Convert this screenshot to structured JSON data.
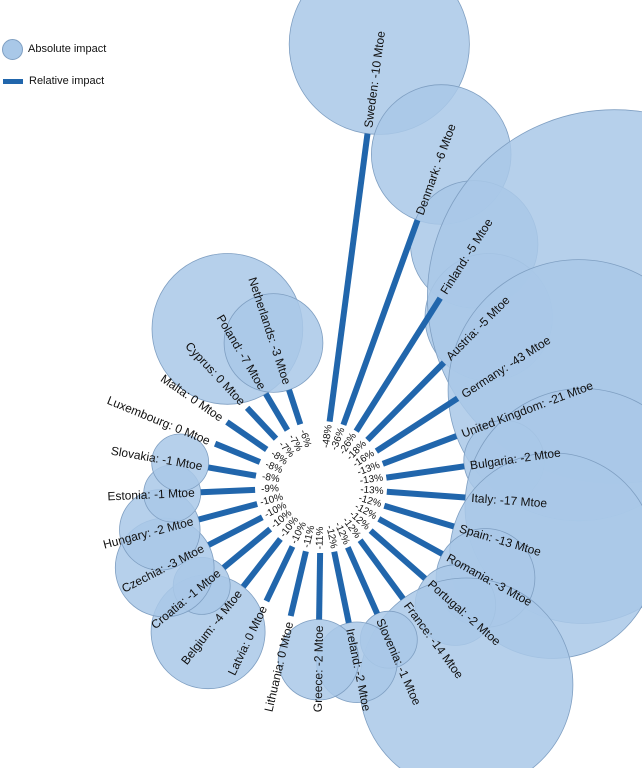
{
  "legend": {
    "absolute_label": "Absolute impact",
    "relative_label": "Relative impact"
  },
  "colors": {
    "bubble_fill": "#a9c8e8",
    "bubble_stroke": "#7f9fc2",
    "bar": "#2166ac"
  },
  "chart_data": {
    "type": "radial-bar-bubble",
    "title": "",
    "units": {
      "absolute": "Mtoe",
      "relative": "%"
    },
    "series": [
      {
        "name": "Absolute impact",
        "type": "bubble"
      },
      {
        "name": "Relative impact",
        "type": "radial-bar"
      }
    ],
    "countries": [
      {
        "name": "Sweden",
        "absolute": -10,
        "relative": -48
      },
      {
        "name": "Denmark",
        "absolute": -6,
        "relative": -36
      },
      {
        "name": "Finland",
        "absolute": -5,
        "relative": -26
      },
      {
        "name": "Austria",
        "absolute": -5,
        "relative": -18
      },
      {
        "name": "Germany",
        "absolute": -43,
        "relative": -16
      },
      {
        "name": "United Kingdom",
        "absolute": -21,
        "relative": -13
      },
      {
        "name": "Bulgaria",
        "absolute": -2,
        "relative": -13
      },
      {
        "name": "Italy",
        "absolute": -17,
        "relative": -13
      },
      {
        "name": "Spain",
        "absolute": -13,
        "relative": -12
      },
      {
        "name": "Romania",
        "absolute": -3,
        "relative": -12
      },
      {
        "name": "Portugal",
        "absolute": -2,
        "relative": -12
      },
      {
        "name": "France",
        "absolute": -14,
        "relative": -12
      },
      {
        "name": "Slovenia",
        "absolute": -1,
        "relative": -12
      },
      {
        "name": "Ireland",
        "absolute": -2,
        "relative": -12
      },
      {
        "name": "Greece",
        "absolute": -2,
        "relative": -11
      },
      {
        "name": "Lithuania",
        "absolute": 0,
        "relative": -11
      },
      {
        "name": "Latvia",
        "absolute": 0,
        "relative": -10
      },
      {
        "name": "Belgium",
        "absolute": -4,
        "relative": -10
      },
      {
        "name": "Croatia",
        "absolute": -1,
        "relative": -10
      },
      {
        "name": "Czechia",
        "absolute": -3,
        "relative": -10
      },
      {
        "name": "Hungary",
        "absolute": -2,
        "relative": -10
      },
      {
        "name": "Estonia",
        "absolute": -1,
        "relative": -9
      },
      {
        "name": "Slovakia",
        "absolute": -1,
        "relative": -8
      },
      {
        "name": "Luxembourg",
        "absolute": 0,
        "relative": -8
      },
      {
        "name": "Malta",
        "absolute": 0,
        "relative": -8
      },
      {
        "name": "Cyprus",
        "absolute": 0,
        "relative": -7
      },
      {
        "name": "Poland",
        "absolute": -7,
        "relative": -7
      },
      {
        "name": "Netherlands",
        "absolute": -3,
        "relative": -6
      }
    ]
  }
}
